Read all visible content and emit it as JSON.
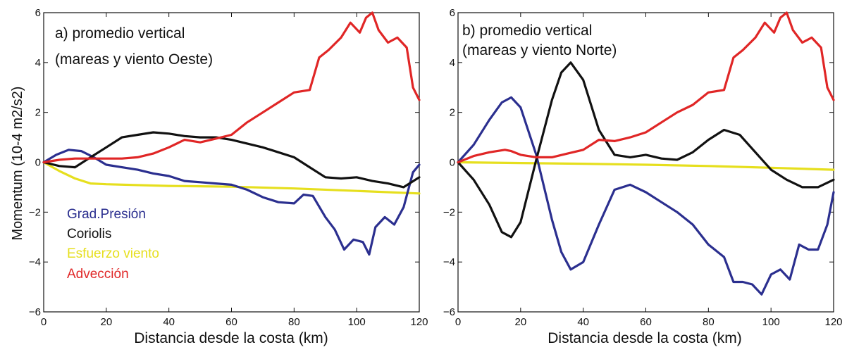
{
  "ylabel": "Momentum (10-4 m2/s2)",
  "legend": [
    {
      "label": "Grad.Presión",
      "color": "#2b2f8f"
    },
    {
      "label": "Coriolis",
      "color": "#111111"
    },
    {
      "label": "Esfuerzo viento",
      "color": "#e6df1e"
    },
    {
      "label": "Advección",
      "color": "#e02626"
    }
  ],
  "chart_data": [
    {
      "type": "line",
      "title_line1": "a) promedio vertical",
      "title_line2": "(mareas y viento Oeste)",
      "xlabel": "Distancia desde la costa (km)",
      "ylabel": "Momentum (10-4 m2/s2)",
      "xlim": [
        0,
        120
      ],
      "ylim": [
        -6,
        6
      ],
      "xticks": [
        0,
        20,
        40,
        60,
        80,
        100,
        120
      ],
      "yticks": [
        -6,
        -4,
        -2,
        0,
        2,
        4,
        6
      ],
      "grid": false,
      "legend_position": "bottom-left",
      "series": [
        {
          "name": "Grad.Presión",
          "color": "#2b2f8f",
          "x": [
            0,
            4,
            8,
            12,
            16,
            20,
            25,
            30,
            35,
            40,
            45,
            50,
            55,
            60,
            65,
            70,
            75,
            80,
            83,
            86,
            90,
            93,
            96,
            99,
            102,
            104,
            106,
            109,
            112,
            115,
            118,
            120
          ],
          "y": [
            0,
            0.3,
            0.5,
            0.45,
            0.2,
            -0.1,
            -0.2,
            -0.3,
            -0.45,
            -0.55,
            -0.75,
            -0.8,
            -0.85,
            -0.9,
            -1.1,
            -1.4,
            -1.6,
            -1.65,
            -1.3,
            -1.35,
            -2.2,
            -2.7,
            -3.5,
            -3.1,
            -3.2,
            -3.7,
            -2.6,
            -2.2,
            -2.5,
            -1.8,
            -0.4,
            -0.1
          ]
        },
        {
          "name": "Coriolis",
          "color": "#111111",
          "x": [
            0,
            5,
            10,
            15,
            20,
            25,
            30,
            35,
            40,
            45,
            50,
            55,
            60,
            65,
            70,
            75,
            80,
            85,
            90,
            95,
            100,
            105,
            110,
            115,
            120
          ],
          "y": [
            0,
            -0.15,
            -0.2,
            0.2,
            0.6,
            1.0,
            1.1,
            1.2,
            1.15,
            1.05,
            1.0,
            1.0,
            0.9,
            0.75,
            0.6,
            0.4,
            0.2,
            -0.2,
            -0.6,
            -0.65,
            -0.6,
            -0.75,
            -0.85,
            -1.0,
            -0.6
          ]
        },
        {
          "name": "Esfuerzo viento",
          "color": "#e6df1e",
          "x": [
            0,
            5,
            10,
            15,
            20,
            40,
            60,
            80,
            100,
            120
          ],
          "y": [
            0,
            -0.35,
            -0.65,
            -0.85,
            -0.88,
            -0.95,
            -0.98,
            -1.05,
            -1.15,
            -1.25
          ]
        },
        {
          "name": "Advección",
          "color": "#e02626",
          "x": [
            0,
            5,
            10,
            15,
            20,
            25,
            30,
            35,
            40,
            45,
            50,
            55,
            60,
            65,
            70,
            75,
            80,
            85,
            88,
            91,
            95,
            98,
            101,
            103,
            105,
            107,
            110,
            113,
            116,
            118,
            120
          ],
          "y": [
            0,
            0.1,
            0.15,
            0.15,
            0.15,
            0.15,
            0.2,
            0.35,
            0.6,
            0.9,
            0.8,
            0.95,
            1.1,
            1.6,
            2.0,
            2.4,
            2.8,
            2.9,
            4.2,
            4.5,
            5.0,
            5.6,
            5.2,
            5.8,
            6.0,
            5.3,
            4.8,
            5.0,
            4.6,
            3.0,
            2.5
          ]
        }
      ]
    },
    {
      "type": "line",
      "title_line1": "b) promedio vertical",
      "title_line2": "(mareas y viento Norte)",
      "xlabel": "Distancia desde la costa (km)",
      "ylabel": "",
      "xlim": [
        0,
        120
      ],
      "ylim": [
        -6,
        6
      ],
      "xticks": [
        0,
        20,
        40,
        60,
        80,
        100,
        120
      ],
      "yticks": [
        -6,
        -4,
        -2,
        0,
        2,
        4,
        6
      ],
      "grid": false,
      "legend_position": "none",
      "series": [
        {
          "name": "Grad.Presión",
          "color": "#2b2f8f",
          "x": [
            0,
            5,
            10,
            14,
            17,
            20,
            25,
            30,
            33,
            36,
            40,
            45,
            50,
            55,
            60,
            65,
            70,
            75,
            80,
            85,
            88,
            91,
            94,
            97,
            100,
            103,
            106,
            109,
            112,
            115,
            118,
            120
          ],
          "y": [
            0,
            0.7,
            1.7,
            2.4,
            2.6,
            2.2,
            0.3,
            -2.3,
            -3.6,
            -4.3,
            -4.0,
            -2.5,
            -1.1,
            -0.9,
            -1.2,
            -1.6,
            -2.0,
            -2.5,
            -3.3,
            -3.8,
            -4.8,
            -4.8,
            -4.9,
            -5.3,
            -4.5,
            -4.3,
            -4.7,
            -3.3,
            -3.5,
            -3.5,
            -2.5,
            -1.2
          ]
        },
        {
          "name": "Coriolis",
          "color": "#111111",
          "x": [
            0,
            5,
            10,
            14,
            17,
            20,
            25,
            30,
            33,
            36,
            40,
            45,
            50,
            55,
            60,
            65,
            70,
            75,
            80,
            85,
            90,
            95,
            100,
            105,
            110,
            115,
            120
          ],
          "y": [
            0,
            -0.7,
            -1.7,
            -2.8,
            -3.0,
            -2.4,
            0.1,
            2.5,
            3.6,
            4.0,
            3.3,
            1.3,
            0.3,
            0.2,
            0.3,
            0.15,
            0.1,
            0.4,
            0.9,
            1.3,
            1.1,
            0.4,
            -0.3,
            -0.7,
            -1.0,
            -1.0,
            -0.7
          ]
        },
        {
          "name": "Esfuerzo viento",
          "color": "#e6df1e",
          "x": [
            0,
            20,
            40,
            60,
            80,
            100,
            120
          ],
          "y": [
            0,
            -0.03,
            -0.06,
            -0.1,
            -0.15,
            -0.22,
            -0.3
          ]
        },
        {
          "name": "Advección",
          "color": "#e02626",
          "x": [
            0,
            5,
            10,
            15,
            17,
            20,
            25,
            30,
            35,
            40,
            45,
            50,
            55,
            60,
            65,
            70,
            75,
            80,
            85,
            88,
            91,
            95,
            98,
            101,
            103,
            105,
            107,
            110,
            113,
            116,
            118,
            120
          ],
          "y": [
            0,
            0.25,
            0.4,
            0.5,
            0.45,
            0.3,
            0.2,
            0.2,
            0.35,
            0.5,
            0.9,
            0.85,
            1.0,
            1.2,
            1.6,
            2.0,
            2.3,
            2.8,
            2.9,
            4.2,
            4.5,
            5.0,
            5.6,
            5.2,
            5.8,
            6.0,
            5.3,
            4.8,
            5.0,
            4.6,
            3.0,
            2.5
          ]
        }
      ]
    }
  ]
}
